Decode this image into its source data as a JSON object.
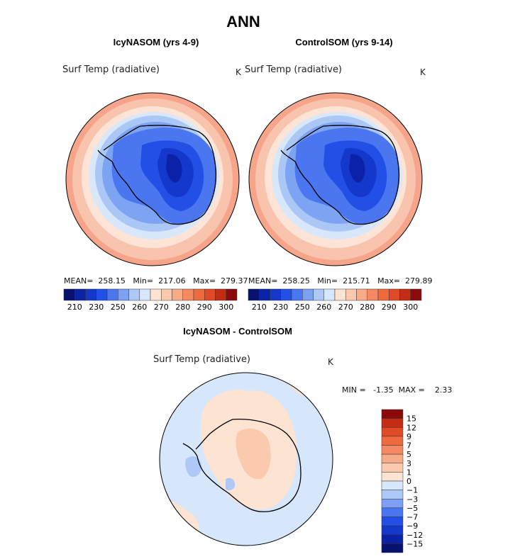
{
  "figure": {
    "title": "ANN"
  },
  "panels": [
    {
      "subtitle": "IcyNASOM (yrs 4-9)",
      "variable": "Surf Temp (radiative)",
      "units": "K",
      "stats_text": "MEAN=  258.15   Min=  217.06   Max=  279.37"
    },
    {
      "subtitle": "ControlSOM (yrs 9-14)",
      "variable": "Surf Temp (radiative)",
      "units": "K",
      "stats_text": "MEAN=  258.25   Min=  215.71   Max=  279.89"
    },
    {
      "subtitle": "IcyNASOM - ControlSOM",
      "variable": "Surf Temp (radiative)",
      "units": "K",
      "stats_text": "MIN =   -1.35  MAX =    2.33"
    }
  ],
  "chart_data": [
    {
      "type": "heatmap",
      "projection": "south-polar-stereographic",
      "title": "IcyNASOM (yrs 4-9)",
      "variable": "Surf Temp (radiative)",
      "units": "K",
      "stats": {
        "mean": 258.15,
        "min": 217.06,
        "max": 279.37
      },
      "colorbar": {
        "orientation": "horizontal",
        "levels": [
          210,
          220,
          230,
          240,
          250,
          255,
          260,
          265,
          270,
          275,
          280,
          285,
          290,
          295,
          300
        ],
        "tick_labels": [
          "210",
          "230",
          "250",
          "260",
          "270",
          "280",
          "290",
          "300"
        ],
        "colors": [
          "#08126e",
          "#0b22a6",
          "#1538cc",
          "#2250e6",
          "#4a76f0",
          "#7ea0f4",
          "#aec8f8",
          "#d6e6fb",
          "#fde4d2",
          "#fbc9ae",
          "#f8ab88",
          "#f58a62",
          "#ef6a3e",
          "#e04a26",
          "#c42c14",
          "#8b0a0a"
        ]
      }
    },
    {
      "type": "heatmap",
      "projection": "south-polar-stereographic",
      "title": "ControlSOM (yrs 9-14)",
      "variable": "Surf Temp (radiative)",
      "units": "K",
      "stats": {
        "mean": 258.25,
        "min": 215.71,
        "max": 279.89
      },
      "colorbar": {
        "orientation": "horizontal",
        "levels": [
          210,
          220,
          230,
          240,
          250,
          255,
          260,
          265,
          270,
          275,
          280,
          285,
          290,
          295,
          300
        ],
        "tick_labels": [
          "210",
          "230",
          "250",
          "260",
          "270",
          "280",
          "290",
          "300"
        ],
        "colors": [
          "#08126e",
          "#0b22a6",
          "#1538cc",
          "#2250e6",
          "#4a76f0",
          "#7ea0f4",
          "#aec8f8",
          "#d6e6fb",
          "#fde4d2",
          "#fbc9ae",
          "#f8ab88",
          "#f58a62",
          "#ef6a3e",
          "#e04a26",
          "#c42c14",
          "#8b0a0a"
        ]
      }
    },
    {
      "type": "heatmap",
      "projection": "south-polar-stereographic",
      "title": "IcyNASOM - ControlSOM",
      "variable": "Surf Temp (radiative)",
      "units": "K",
      "stats": {
        "min": -1.35,
        "max": 2.33
      },
      "colorbar": {
        "orientation": "vertical",
        "levels": [
          15,
          12,
          9,
          7,
          5,
          3,
          1,
          0,
          -1,
          -3,
          -5,
          -7,
          -9,
          -12,
          -15
        ],
        "tick_labels": [
          "15",
          "12",
          "9",
          "7",
          "5",
          "3",
          "1",
          "0",
          "−1",
          "−3",
          "−5",
          "−7",
          "−9",
          "−12",
          "−15"
        ],
        "colors": [
          "#8b0a0a",
          "#c42c14",
          "#e04a26",
          "#ef6a3e",
          "#f58a62",
          "#f8ab88",
          "#fbc9ae",
          "#fde4d2",
          "#d6e6fb",
          "#aec8f8",
          "#7ea0f4",
          "#4a76f0",
          "#2250e6",
          "#1538cc",
          "#0b22a6",
          "#08126e"
        ]
      }
    }
  ]
}
